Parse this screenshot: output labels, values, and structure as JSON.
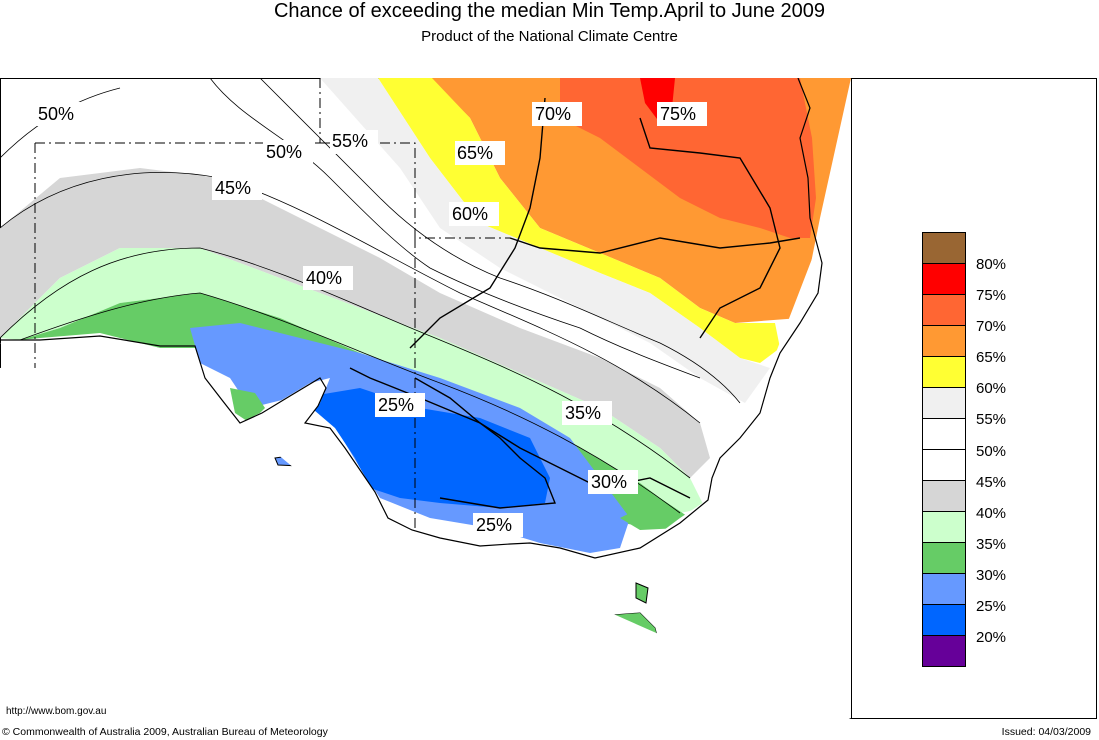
{
  "header": {
    "title": "Chance of exceeding the median Min Temp.April to June 2009",
    "subtitle": "Product of the National Climate Centre"
  },
  "map_labels": [
    {
      "id": "l50a",
      "text": "50%"
    },
    {
      "id": "l50b",
      "text": "50%"
    },
    {
      "id": "l55",
      "text": "55%"
    },
    {
      "id": "l45",
      "text": "45%"
    },
    {
      "id": "l40",
      "text": "40%"
    },
    {
      "id": "l65",
      "text": "65%"
    },
    {
      "id": "l60",
      "text": "60%"
    },
    {
      "id": "l70",
      "text": "70%"
    },
    {
      "id": "l75",
      "text": "75%"
    },
    {
      "id": "l25a",
      "text": "25%"
    },
    {
      "id": "l35",
      "text": "35%"
    },
    {
      "id": "l30",
      "text": "30%"
    },
    {
      "id": "l25b",
      "text": "25%"
    }
  ],
  "legend": [
    {
      "label": "80%",
      "color": "#996633"
    },
    {
      "label": "75%",
      "color": "#ff0000"
    },
    {
      "label": "70%",
      "color": "#ff6633"
    },
    {
      "label": "65%",
      "color": "#ff9933"
    },
    {
      "label": "60%",
      "color": "#ffff33"
    },
    {
      "label": "55%",
      "color": "#f0f0f0"
    },
    {
      "label": "50%",
      "color": "#ffffff"
    },
    {
      "label": "45%",
      "color": "#ffffff"
    },
    {
      "label": "40%",
      "color": "#d6d6d6"
    },
    {
      "label": "35%",
      "color": "#ccffcc"
    },
    {
      "label": "30%",
      "color": "#66cc66"
    },
    {
      "label": "25%",
      "color": "#6699ff"
    },
    {
      "label": "20%",
      "color": "#0066ff"
    },
    {
      "label": "",
      "color": "#660099"
    }
  ],
  "footer": {
    "url": "http://www.bom.gov.au",
    "copyright": "© Commonwealth of Australia 2009, Australian Bureau of Meteorology",
    "issued": "Issued: 04/03/2009"
  }
}
